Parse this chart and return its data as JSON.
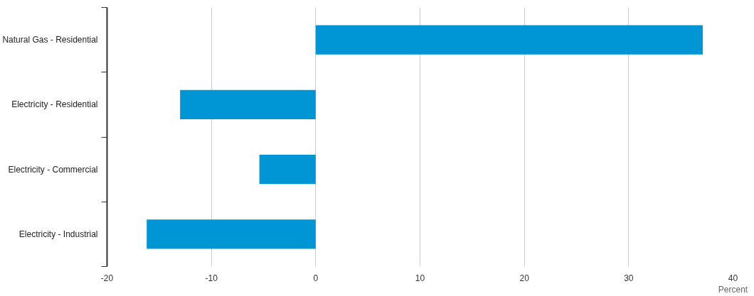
{
  "chart_data": {
    "type": "bar",
    "orientation": "horizontal",
    "categories": [
      "Natural Gas - Residential",
      "Electricity - Residential",
      "Electricity - Commercial",
      "Electricity - Industrial"
    ],
    "values": [
      37.1,
      -13.0,
      -5.4,
      -16.2
    ],
    "color": "#0096d6",
    "xlim": [
      -20,
      40
    ],
    "xticks": [
      -20,
      -10,
      0,
      10,
      20,
      30,
      40
    ],
    "xlabel": "Percent",
    "grid": "x"
  }
}
